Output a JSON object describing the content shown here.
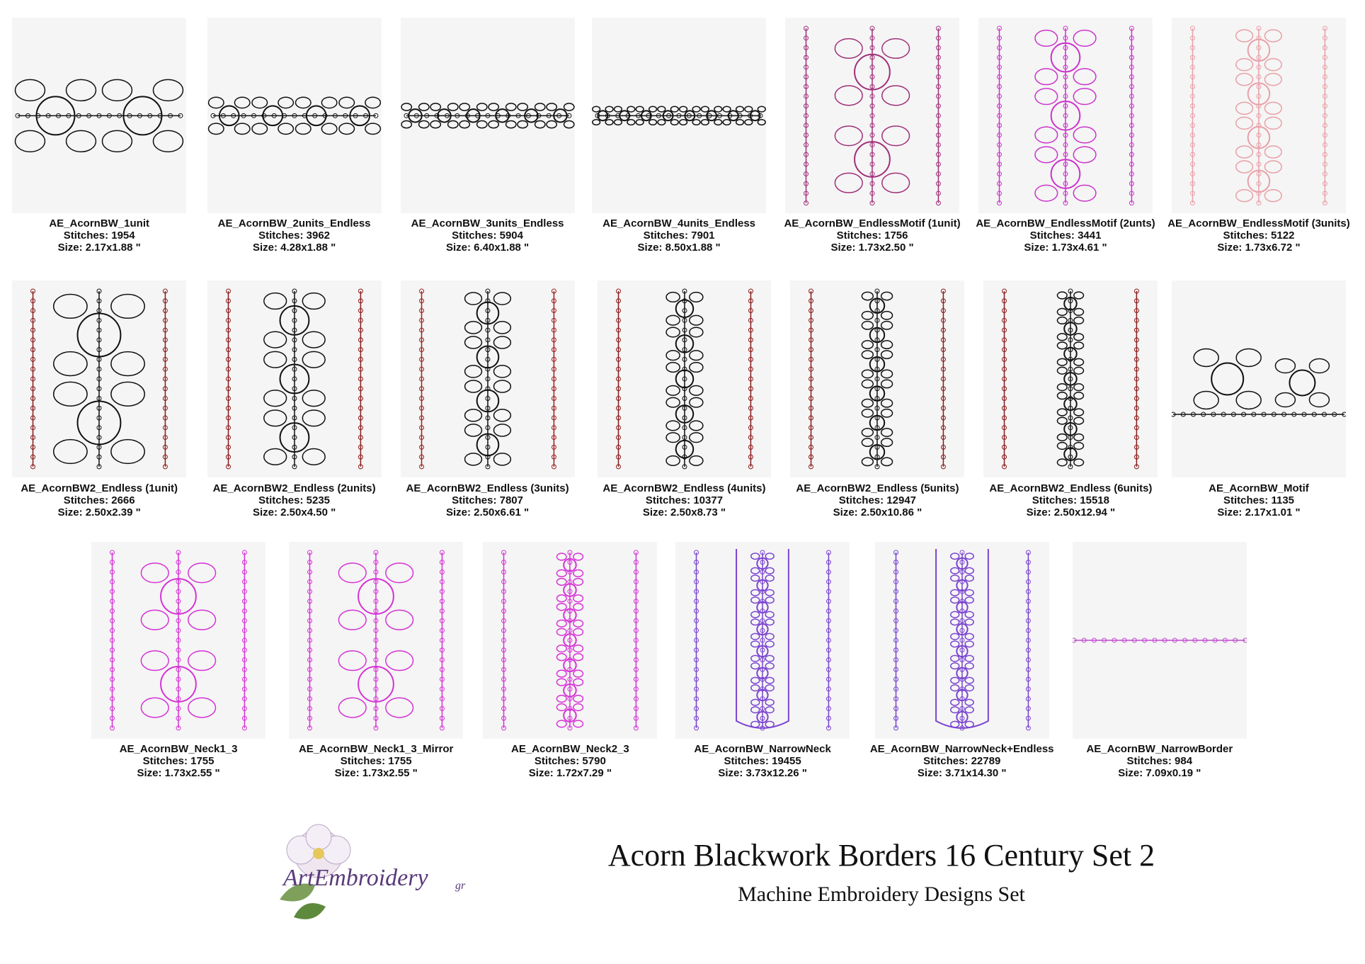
{
  "rows": [
    [
      {
        "name": "AE_AcornBW_1unit",
        "stitches": "Stitches: 1954",
        "size": "Size: 2.17x1.88 \""
      },
      {
        "name": "AE_AcornBW_2units_Endless",
        "stitches": "Stitches: 3962",
        "size": "Size: 4.28x1.88 \""
      },
      {
        "name": "AE_AcornBW_3units_Endless",
        "stitches": "Stitches: 5904",
        "size": "Size: 6.40x1.88 \""
      },
      {
        "name": "AE_AcornBW_4units_Endless",
        "stitches": "Stitches: 7901",
        "size": "Size: 8.50x1.88 \""
      },
      {
        "name": "AE_AcornBW_EndlessMotif (1unit)",
        "stitches": "Stitches: 1756",
        "size": "Size: 1.73x2.50 \""
      },
      {
        "name": "AE_AcornBW_EndlessMotif (2unts)",
        "stitches": "Stitches: 3441",
        "size": "Size: 1.73x4.61 \""
      },
      {
        "name": "AE_AcornBW_EndlessMotif (3units)",
        "stitches": "Stitches: 5122",
        "size": "Size: 1.73x6.72 \""
      }
    ],
    [
      {
        "name": "AE_AcornBW2_Endless (1unit)",
        "stitches": "Stitches: 2666",
        "size": "Size: 2.50x2.39 \""
      },
      {
        "name": "AE_AcornBW2_Endless (2units)",
        "stitches": "Stitches: 5235",
        "size": "Size: 2.50x4.50 \""
      },
      {
        "name": "AE_AcornBW2_Endless (3units)",
        "stitches": "Stitches: 7807",
        "size": "Size: 2.50x6.61 \""
      },
      {
        "name": "AE_AcornBW2_Endless (4units)",
        "stitches": "Stitches: 10377",
        "size": "Size: 2.50x8.73 \""
      },
      {
        "name": "AE_AcornBW2_Endless (5units)",
        "stitches": "Stitches: 12947",
        "size": "Size: 2.50x10.86 \""
      },
      {
        "name": "AE_AcornBW2_Endless (6units)",
        "stitches": "Stitches: 15518",
        "size": "Size: 2.50x12.94 \""
      },
      {
        "name": "AE_AcornBW_Motif",
        "stitches": "Stitches: 1135",
        "size": "Size: 2.17x1.01 \""
      }
    ],
    [
      {
        "name": "AE_AcornBW_Neck1_3",
        "stitches": "Stitches: 1755",
        "size": "Size: 1.73x2.55 \""
      },
      {
        "name": "AE_AcornBW_Neck1_3_Mirror",
        "stitches": "Stitches: 1755",
        "size": "Size: 1.73x2.55 \""
      },
      {
        "name": "AE_AcornBW_Neck2_3",
        "stitches": "Stitches: 5790",
        "size": "Size: 1.72x7.29 \""
      },
      {
        "name": "AE_AcornBW_NarrowNeck",
        "stitches": "Stitches: 19455",
        "size": "Size: 3.73x12.26 \""
      },
      {
        "name": "AE_AcornBW_NarrowNeck+Endless",
        "stitches": "Stitches: 22789",
        "size": "Size: 3.71x14.30 \""
      },
      {
        "name": "AE_AcornBW_NarrowBorder",
        "stitches": "Stitches: 984",
        "size": "Size: 7.09x0.19 \""
      }
    ]
  ],
  "footer": {
    "logo": "ArtEmbroidery",
    "logo_suffix": "gr",
    "title": "Acorn Blackwork Borders 16 Century Set 2",
    "subtitle": "Machine Embroidery Designs Set"
  }
}
